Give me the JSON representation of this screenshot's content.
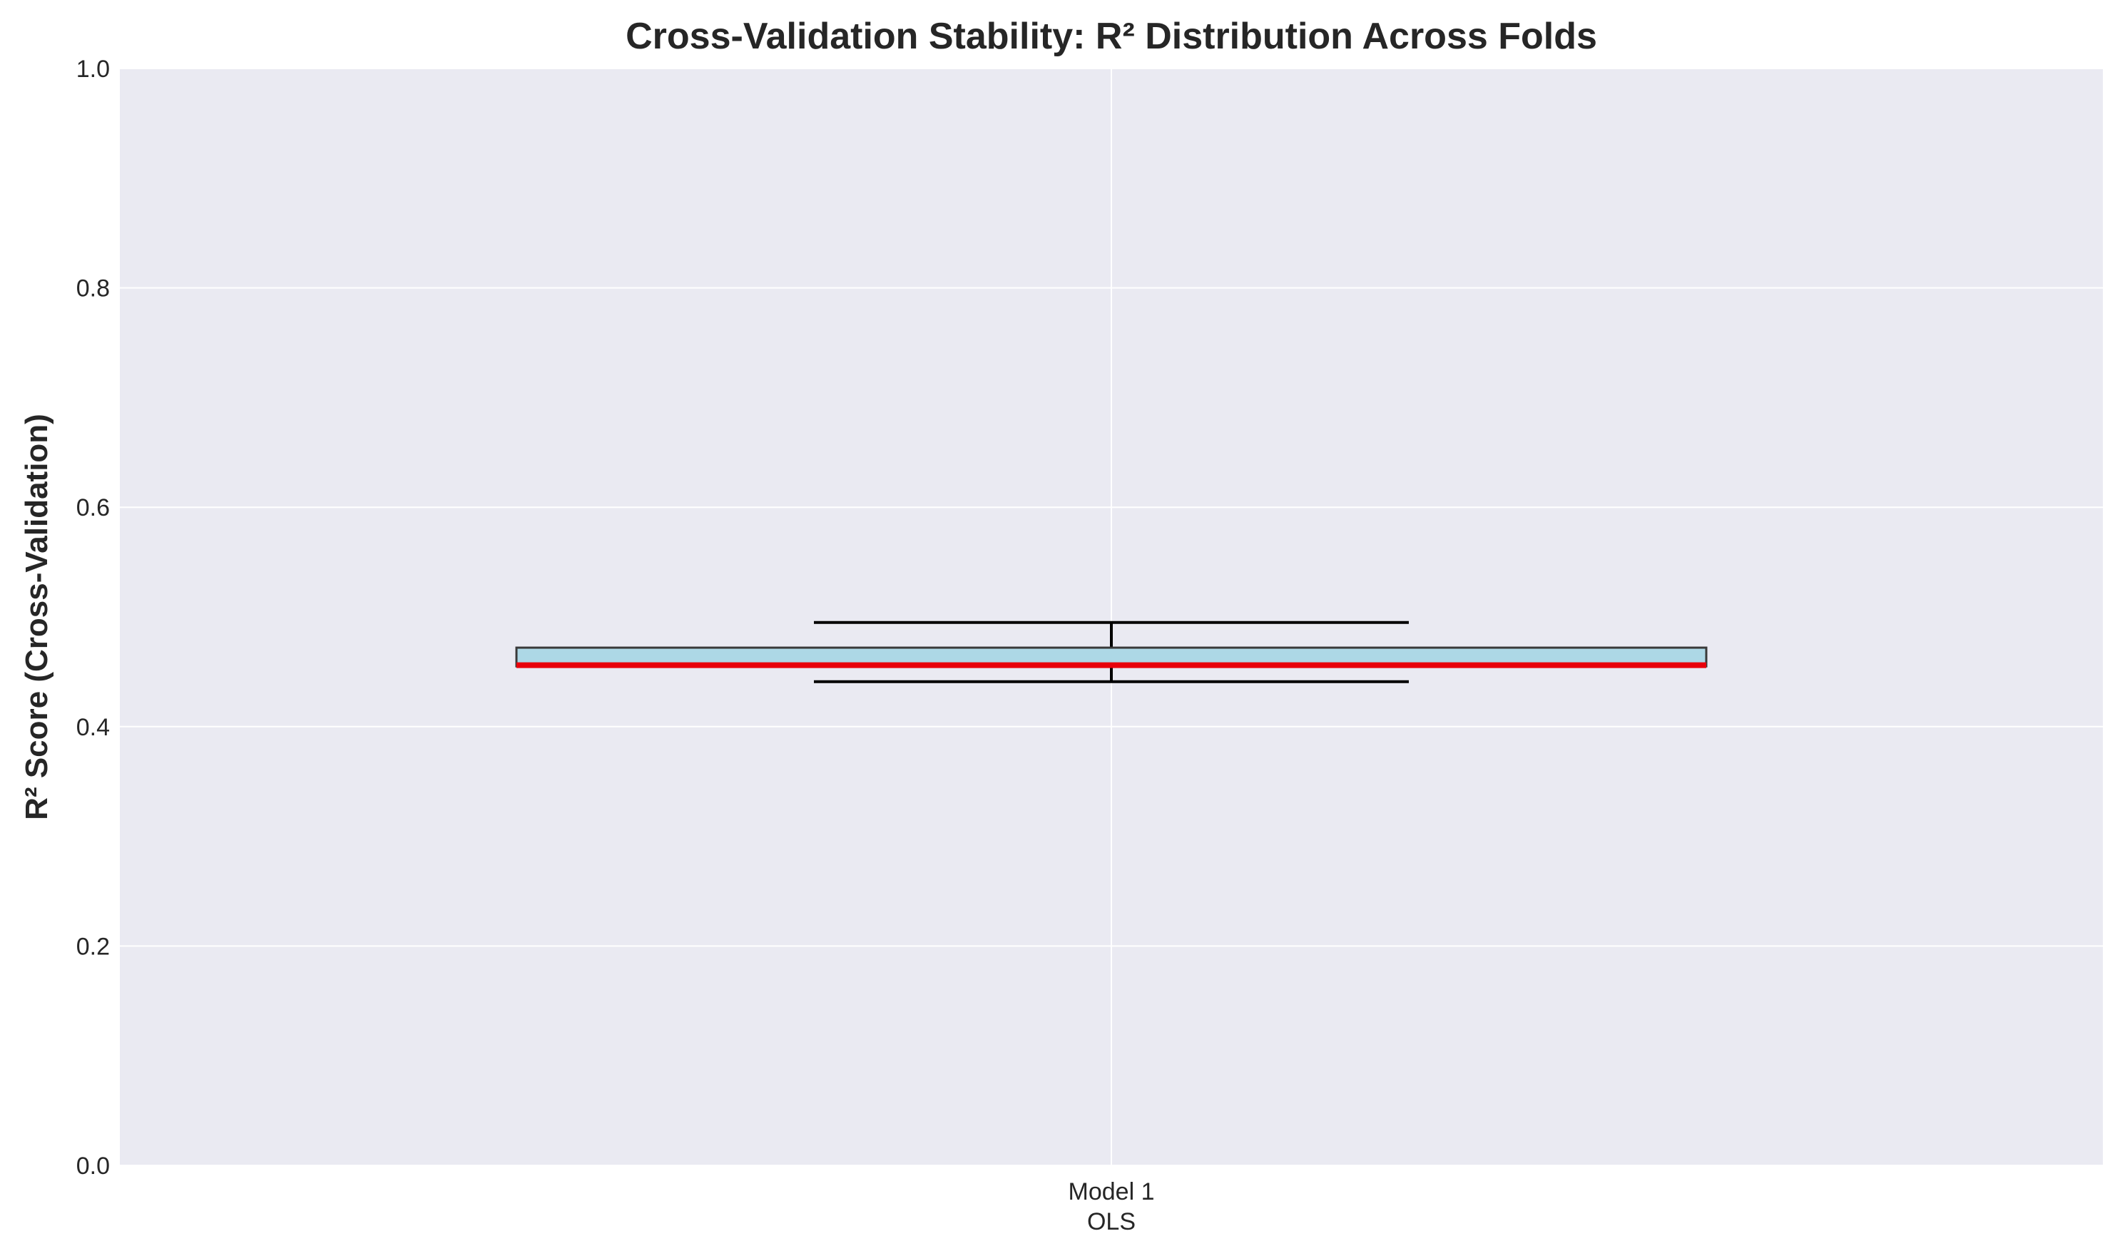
{
  "chart_data": {
    "type": "box",
    "title": "Cross-Validation Stability: R² Distribution Across Folds",
    "xlabel": "",
    "ylabel": "R² Score (Cross-Validation)",
    "ylim": [
      0.0,
      1.0
    ],
    "yticks": [
      "0.0",
      "0.2",
      "0.4",
      "0.6",
      "0.8",
      "1.0"
    ],
    "categories": [
      "Model 1\nOLS"
    ],
    "boxes": [
      {
        "label_lines": [
          "Model 1",
          "OLS"
        ],
        "whisker_low": 0.441,
        "q1": 0.455,
        "median": 0.456,
        "q3": 0.472,
        "whisker_high": 0.495
      }
    ],
    "grid": true,
    "colors": {
      "plot_background": "#EAEAF2",
      "grid": "#FFFFFF",
      "box_fill": "#ADD8E6",
      "box_edge": "#3A3A3A",
      "median": "#E8000B",
      "whisker": "#000000"
    }
  }
}
